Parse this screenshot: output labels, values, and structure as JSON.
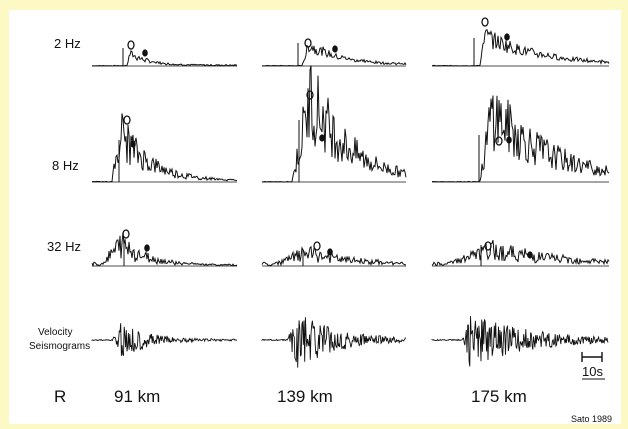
{
  "rows": [
    {
      "label": "2 Hz"
    },
    {
      "label": "8 Hz"
    },
    {
      "label": "32 Hz"
    },
    {
      "label": "Velocity Seismograms",
      "lines": [
        "Velocity",
        "Seismograms"
      ]
    }
  ],
  "station": "R",
  "distances": [
    "91 km",
    "139 km",
    "175 km"
  ],
  "scale_bar": "10s",
  "credit": "Sato 1989",
  "colors": {
    "background": "#fdf9c4",
    "panel": "#ffffff",
    "ink": "#111111"
  }
}
